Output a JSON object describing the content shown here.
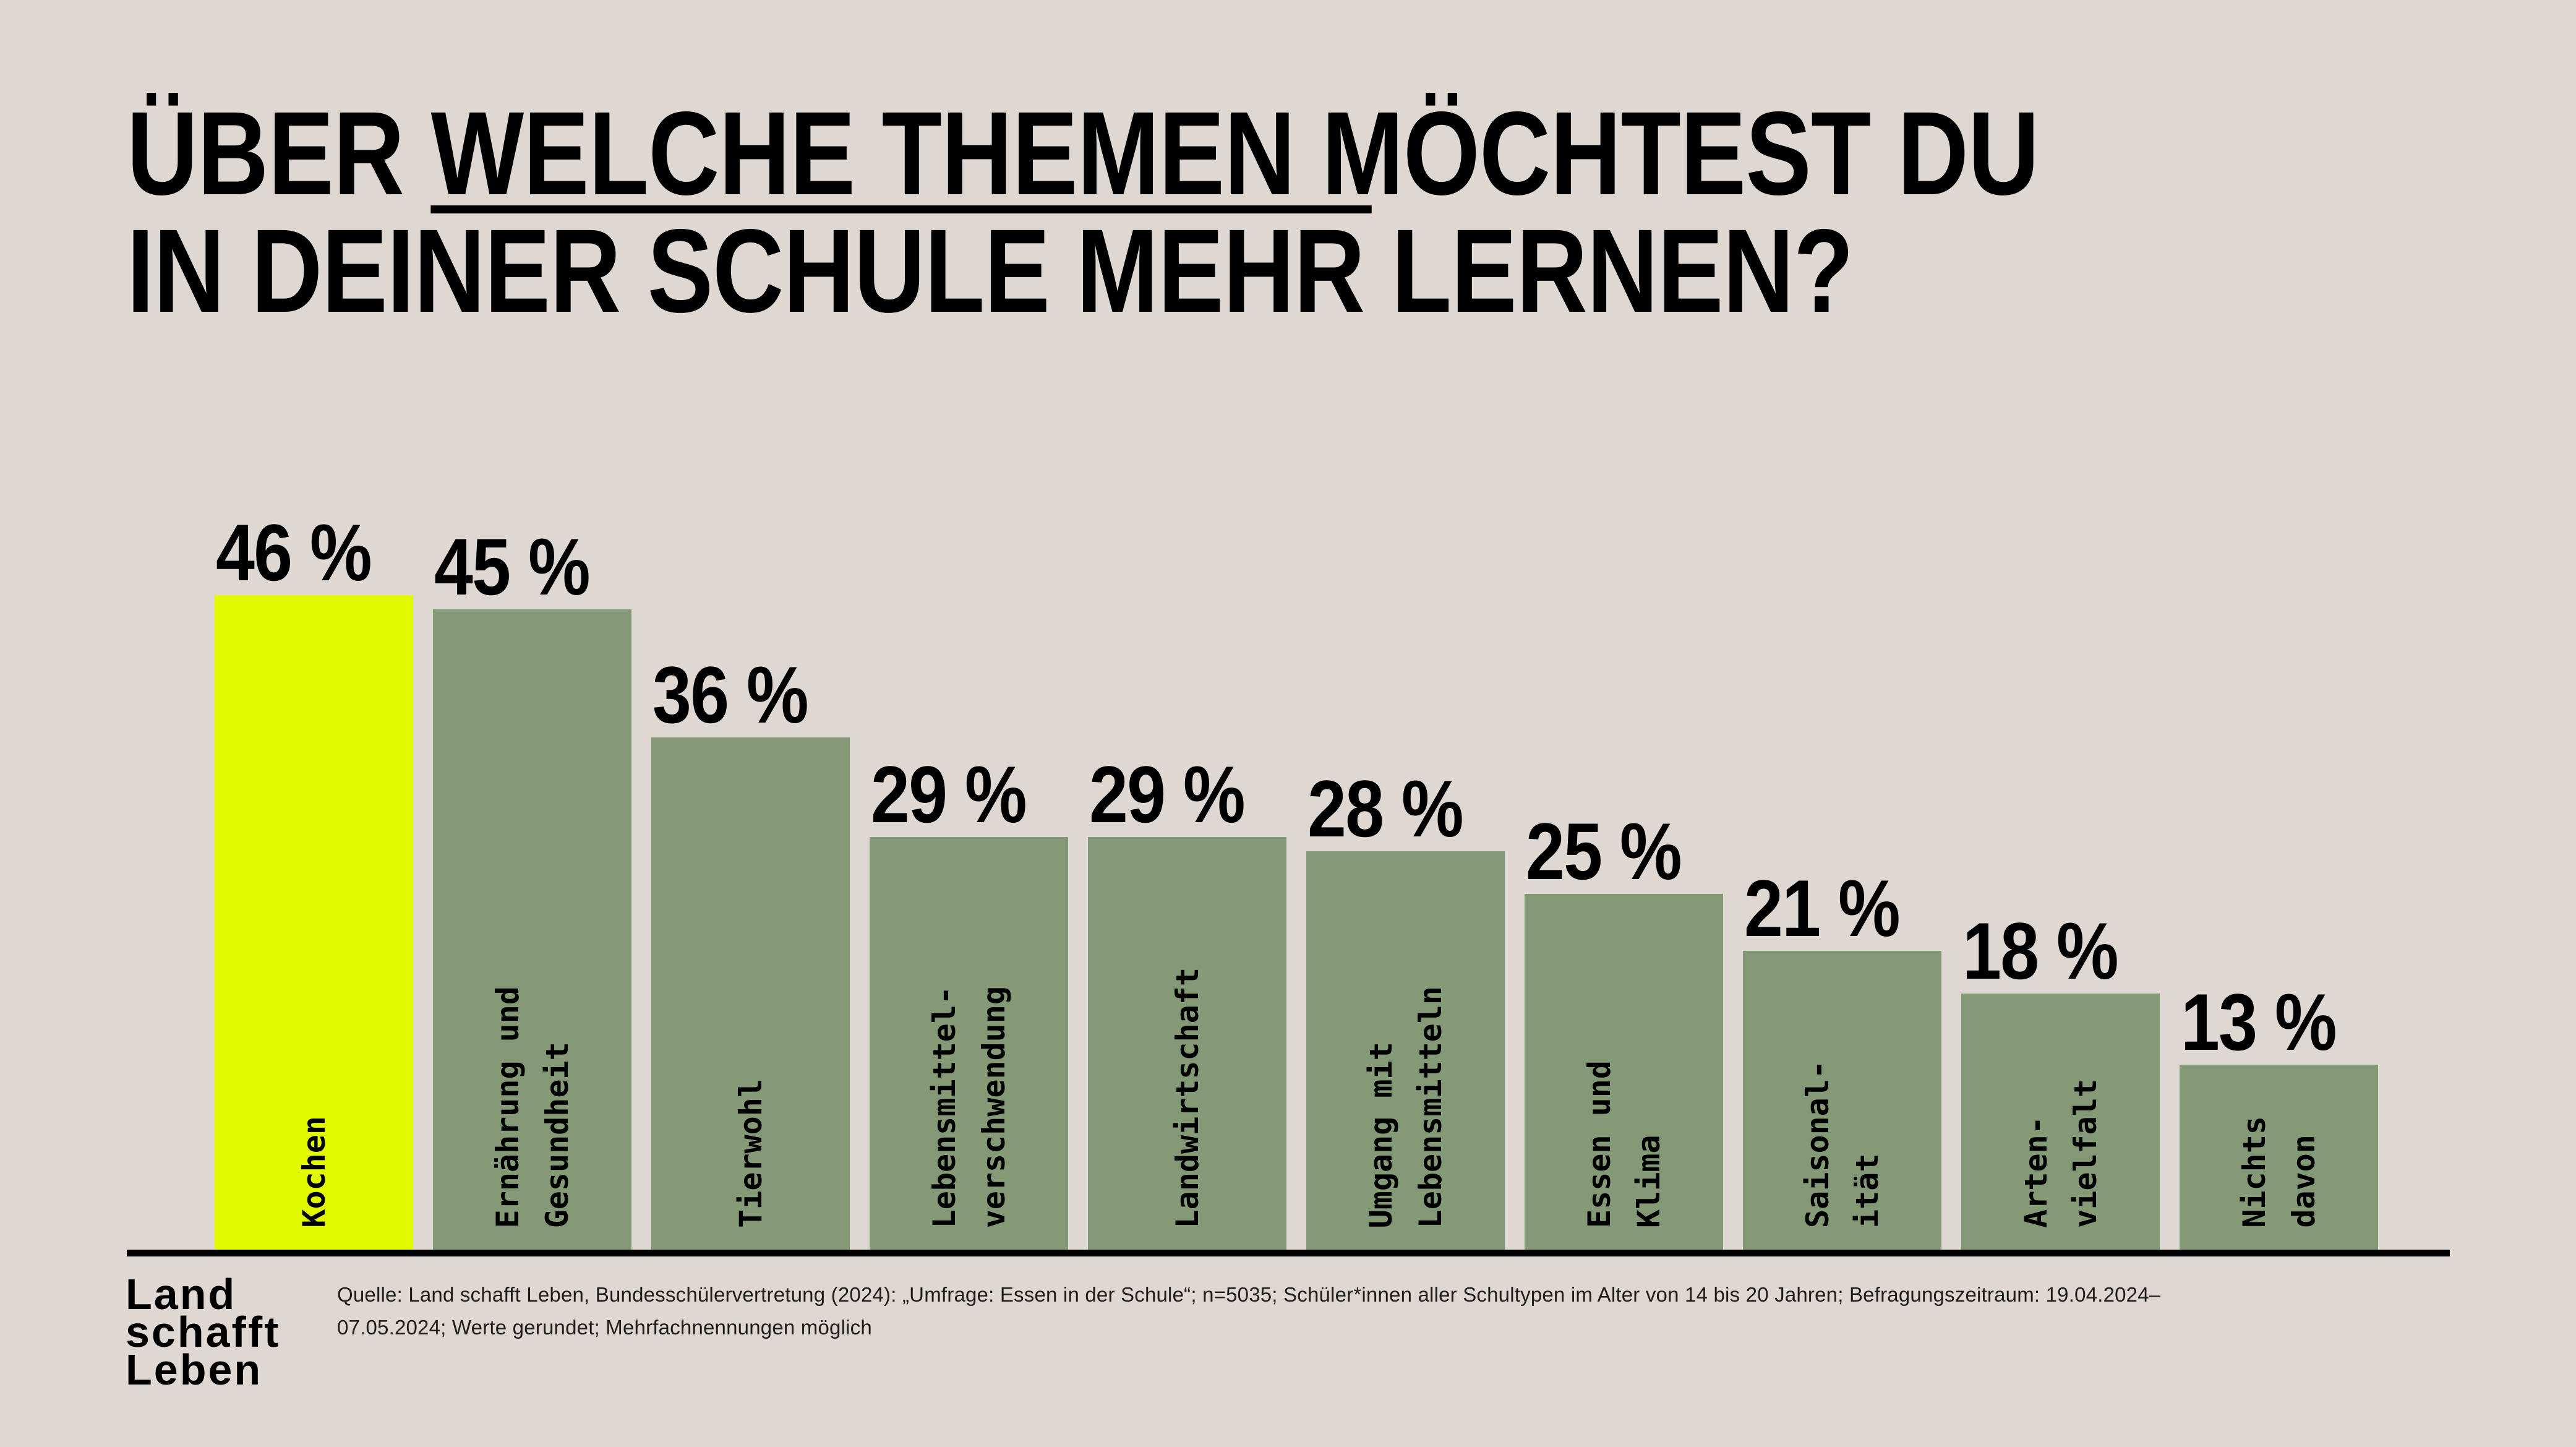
{
  "background_color": "#ded7d2",
  "title": {
    "line1_pre": "ÜBER ",
    "line1_underlined": "WELCHE THEMEN",
    "line1_post": " MÖCHTEST DU",
    "line2": "IN DEINER SCHULE MEHR LERNEN?"
  },
  "chart_data": {
    "type": "bar",
    "title": "Über welche Themen möchtest du in deiner Schule mehr lernen?",
    "unit": "%",
    "categories": [
      "Kochen",
      "Ernährung und Gesundheit",
      "Tierwohl",
      "Lebensmittelverschwendung",
      "Landwirtschaft",
      "Umgang mit Lebensmitteln",
      "Essen und Klima",
      "Saisonalität",
      "Artenvielfalt",
      "Nichts davon"
    ],
    "values": [
      46,
      45,
      36,
      29,
      29,
      28,
      25,
      21,
      18,
      13
    ],
    "bar_label_lines": [
      [
        "Kochen"
      ],
      [
        "Ernährung und",
        "Gesundheit"
      ],
      [
        "Tierwohl"
      ],
      [
        "Lebensmittel-",
        "verschwendung"
      ],
      [
        "Landwirtschaft"
      ],
      [
        "Umgang mit",
        "Lebensmitteln"
      ],
      [
        "Essen und",
        "Klima"
      ],
      [
        "Saisonal-",
        "ität"
      ],
      [
        "Arten-",
        "vielfalt"
      ],
      [
        "Nichts",
        "davon"
      ]
    ],
    "value_suffix": " %",
    "highlight_index": 0,
    "ylim": [
      0,
      46
    ],
    "grid": false,
    "legend": false,
    "colors": {
      "highlight_bar": "#e2fa00",
      "bar": "#849a77",
      "label_text": "#000000",
      "baseline": "#000000"
    }
  },
  "logo": {
    "line1": "Land",
    "line2": "schafft",
    "line3": "Leben"
  },
  "source": {
    "line1": "Quelle: Land schafft Leben, Bundesschülervertretung (2024): „Umfrage: Essen in der Schule“; n=5035; Schüler*innen aller Schultypen im Alter von 14 bis 20 Jahren; Befragungszeitraum: 19.04.2024–",
    "line2": "07.05.2024; Werte gerundet; Mehrfachnennungen möglich"
  }
}
